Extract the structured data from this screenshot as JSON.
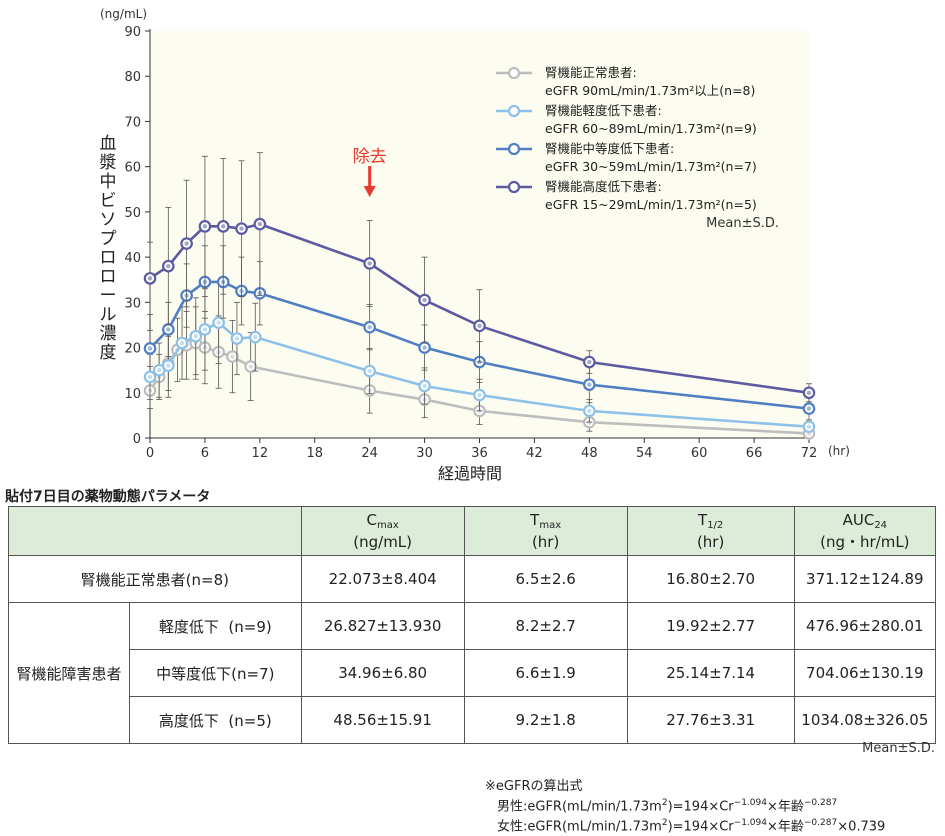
{
  "chart_data": {
    "type": "line",
    "y_unit": "(ng/mL)",
    "x_unit": "(hr)",
    "xlabel": "経過時間",
    "ylabel": "血漿中ビソプロロール濃度",
    "xlim": [
      0,
      72
    ],
    "ylim": [
      0,
      90
    ],
    "x_ticks": [
      0,
      6,
      12,
      18,
      24,
      30,
      36,
      42,
      48,
      54,
      60,
      66,
      72
    ],
    "y_ticks": [
      0,
      10,
      20,
      30,
      40,
      50,
      60,
      70,
      80,
      90
    ],
    "annotation": "除去",
    "annotation_x": 24,
    "stat_note": "Mean±S.D.",
    "colors": {
      "normal": "#bdbdbd",
      "mild": "#8ec1e8",
      "moderate": "#4f7ec2",
      "severe": "#5c5aa0",
      "arrow": "#e83a2e",
      "plot_bg": "#fdfcf0"
    },
    "series": [
      {
        "name": "腎機能正常患者:",
        "name2": "eGFR 90mL/min/1.73m²以上(n=8)",
        "key": "normal",
        "points": [
          {
            "x": 0,
            "y": 10.5,
            "sd": 4.0
          },
          {
            "x": 1,
            "y": 13.5,
            "sd": 5.0
          },
          {
            "x": 2,
            "y": 16.5,
            "sd": 6.0
          },
          {
            "x": 3,
            "y": 19.5,
            "sd": 7.0
          },
          {
            "x": 4,
            "y": 20.5,
            "sd": 7.5
          },
          {
            "x": 5,
            "y": 21.0,
            "sd": 8.0
          },
          {
            "x": 6,
            "y": 20.0,
            "sd": 8.0
          },
          {
            "x": 7.5,
            "y": 19.0,
            "sd": 8.0
          },
          {
            "x": 9,
            "y": 18.0,
            "sd": 8.0
          },
          {
            "x": 11,
            "y": 15.8,
            "sd": 7.5
          },
          {
            "x": 24,
            "y": 10.5,
            "sd": 5.0
          },
          {
            "x": 30,
            "y": 8.5,
            "sd": 4.0
          },
          {
            "x": 36,
            "y": 6.0,
            "sd": 3.0
          },
          {
            "x": 48,
            "y": 3.5,
            "sd": 2.0
          },
          {
            "x": 72,
            "y": 1.0,
            "sd": 0.8
          }
        ]
      },
      {
        "name": "腎機能軽度低下患者:",
        "name2": "eGFR 60~89mL/min/1.73m²(n=9)",
        "key": "mild",
        "points": [
          {
            "x": 0,
            "y": 13.5,
            "sd": 5.0
          },
          {
            "x": 1,
            "y": 15.0,
            "sd": 6.0
          },
          {
            "x": 2,
            "y": 16.0,
            "sd": 7.0
          },
          {
            "x": 3.5,
            "y": 21.0,
            "sd": 8.0
          },
          {
            "x": 5,
            "y": 22.5,
            "sd": 8.5
          },
          {
            "x": 6,
            "y": 24.0,
            "sd": 9.0
          },
          {
            "x": 7.5,
            "y": 25.5,
            "sd": 9.0
          },
          {
            "x": 9.5,
            "y": 22.0,
            "sd": 8.0
          },
          {
            "x": 11.5,
            "y": 22.3,
            "sd": 7.5
          },
          {
            "x": 24,
            "y": 14.8,
            "sd": 5.0
          },
          {
            "x": 30,
            "y": 11.5,
            "sd": 4.0
          },
          {
            "x": 36,
            "y": 9.5,
            "sd": 3.5
          },
          {
            "x": 48,
            "y": 6.0,
            "sd": 2.5
          },
          {
            "x": 72,
            "y": 2.5,
            "sd": 1.2
          }
        ]
      },
      {
        "name": "腎機能中等度低下患者:",
        "name2": "eGFR 30~59mL/min/1.73m²(n=7)",
        "key": "moderate",
        "points": [
          {
            "x": 0,
            "y": 19.8,
            "sd": 4.0
          },
          {
            "x": 2,
            "y": 24.0,
            "sd": 6.0
          },
          {
            "x": 4,
            "y": 31.5,
            "sd": 7.0
          },
          {
            "x": 6,
            "y": 34.5,
            "sd": 8.0
          },
          {
            "x": 8,
            "y": 34.5,
            "sd": 8.0
          },
          {
            "x": 10,
            "y": 32.5,
            "sd": 7.5
          },
          {
            "x": 12,
            "y": 32.0,
            "sd": 7.0
          },
          {
            "x": 24,
            "y": 24.5,
            "sd": 5.0
          },
          {
            "x": 30,
            "y": 20.0,
            "sd": 5.0
          },
          {
            "x": 36,
            "y": 16.8,
            "sd": 4.5
          },
          {
            "x": 48,
            "y": 11.8,
            "sd": 4.0
          },
          {
            "x": 72,
            "y": 6.5,
            "sd": 2.5
          }
        ]
      },
      {
        "name": "腎機能高度低下患者:",
        "name2": "eGFR 15~29mL/min/1.73m²(n=5)",
        "key": "severe",
        "points": [
          {
            "x": 0,
            "y": 35.3,
            "sd": 8.0
          },
          {
            "x": 2,
            "y": 38.0,
            "sd": 13.0
          },
          {
            "x": 4,
            "y": 43.0,
            "sd": 14.0
          },
          {
            "x": 6,
            "y": 46.8,
            "sd": 15.5
          },
          {
            "x": 8,
            "y": 46.8,
            "sd": 15.0
          },
          {
            "x": 10,
            "y": 46.3,
            "sd": 15.0
          },
          {
            "x": 12,
            "y": 47.3,
            "sd": 15.8
          },
          {
            "x": 24,
            "y": 38.6,
            "sd": 9.5
          },
          {
            "x": 30,
            "y": 30.5,
            "sd": 9.5
          },
          {
            "x": 36,
            "y": 24.8,
            "sd": 8.0
          },
          {
            "x": 48,
            "y": 16.8,
            "sd": 2.5
          },
          {
            "x": 72,
            "y": 10.0,
            "sd": 2.0
          }
        ]
      }
    ]
  },
  "table": {
    "title": "貼付7日目の薬物動態パラメータ",
    "headers": [
      {
        "main": "C",
        "sub": "max",
        "unit": "(ng/mL)"
      },
      {
        "main": "T",
        "sub": "max",
        "unit": "(hr)"
      },
      {
        "main": "T",
        "sub": "1/2",
        "unit": "(hr)"
      },
      {
        "main": "AUC",
        "sub": "24",
        "unit": "(ng・hr/mL)"
      }
    ],
    "normal_row": {
      "label": "腎機能正常患者(n=8)",
      "values": [
        "22.073±8.404",
        "6.5±2.6",
        "16.80±2.70",
        "371.12±124.89"
      ]
    },
    "group_label": "腎機能障害患者",
    "sub_rows": [
      {
        "label": "軽度低下  (n=9)",
        "values": [
          "26.827±13.930",
          "8.2±2.7",
          "19.92±2.77",
          "476.96±280.01"
        ]
      },
      {
        "label": "中等度低下(n=7)",
        "values": [
          "34.96±6.80",
          "6.6±1.9",
          "25.14±7.14",
          "704.06±130.19"
        ]
      },
      {
        "label": "高度低下  (n=5)",
        "values": [
          "48.56±15.91",
          "9.2±1.8",
          "27.76±3.31",
          "1034.08±326.05"
        ]
      }
    ],
    "footnote": "Mean±S.D."
  },
  "formula": {
    "title": "※eGFRの算出式",
    "male_prefix": "男性:eGFR(mL/min/1.73m",
    "male_sq": "2",
    "male_mid": ")=194×Cr",
    "male_exp1": "−1.094",
    "male_mid2": "×年齢",
    "male_exp2": "−0.287",
    "female_prefix": "女性:eGFR(mL/min/1.73m",
    "female_sq": "2",
    "female_mid": ")=194×Cr",
    "female_exp1": "−1.094",
    "female_mid2": "×年齢",
    "female_exp2": "−0.287",
    "female_suffix": "×0.739"
  }
}
